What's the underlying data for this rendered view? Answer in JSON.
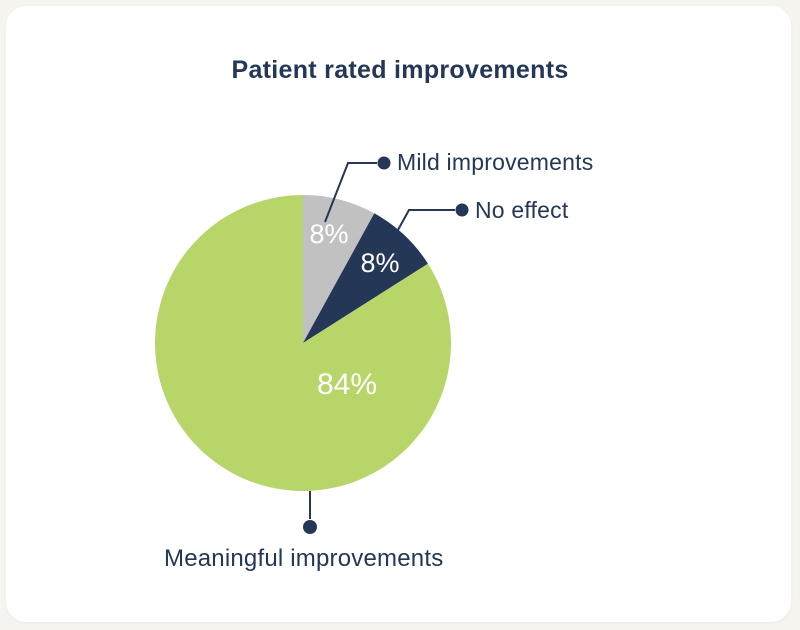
{
  "card": {
    "title": "Patient rated improvements"
  },
  "colors": {
    "page_background": "#F5F4EF",
    "card_background": "#FFFFFF",
    "text": "#243757",
    "connector": "#243757",
    "slice_green": "#B8D56A",
    "slice_gray": "#C1C1C1",
    "slice_navy": "#243757",
    "pct_text": "#FFFFFF"
  },
  "chart_data": {
    "type": "pie",
    "title": "Patient rated improvements",
    "start_angle_deg": -90,
    "direction": "clockwise",
    "legend_position": "callout-labels",
    "slices": [
      {
        "label": "Mild improvements",
        "value": 8,
        "display": "8%",
        "color": "#C1C1C1"
      },
      {
        "label": "No effect",
        "value": 8,
        "display": "8%",
        "color": "#243757"
      },
      {
        "label": "Meaningful improvements",
        "value": 84,
        "display": "84%",
        "color": "#B8D56A"
      }
    ]
  }
}
